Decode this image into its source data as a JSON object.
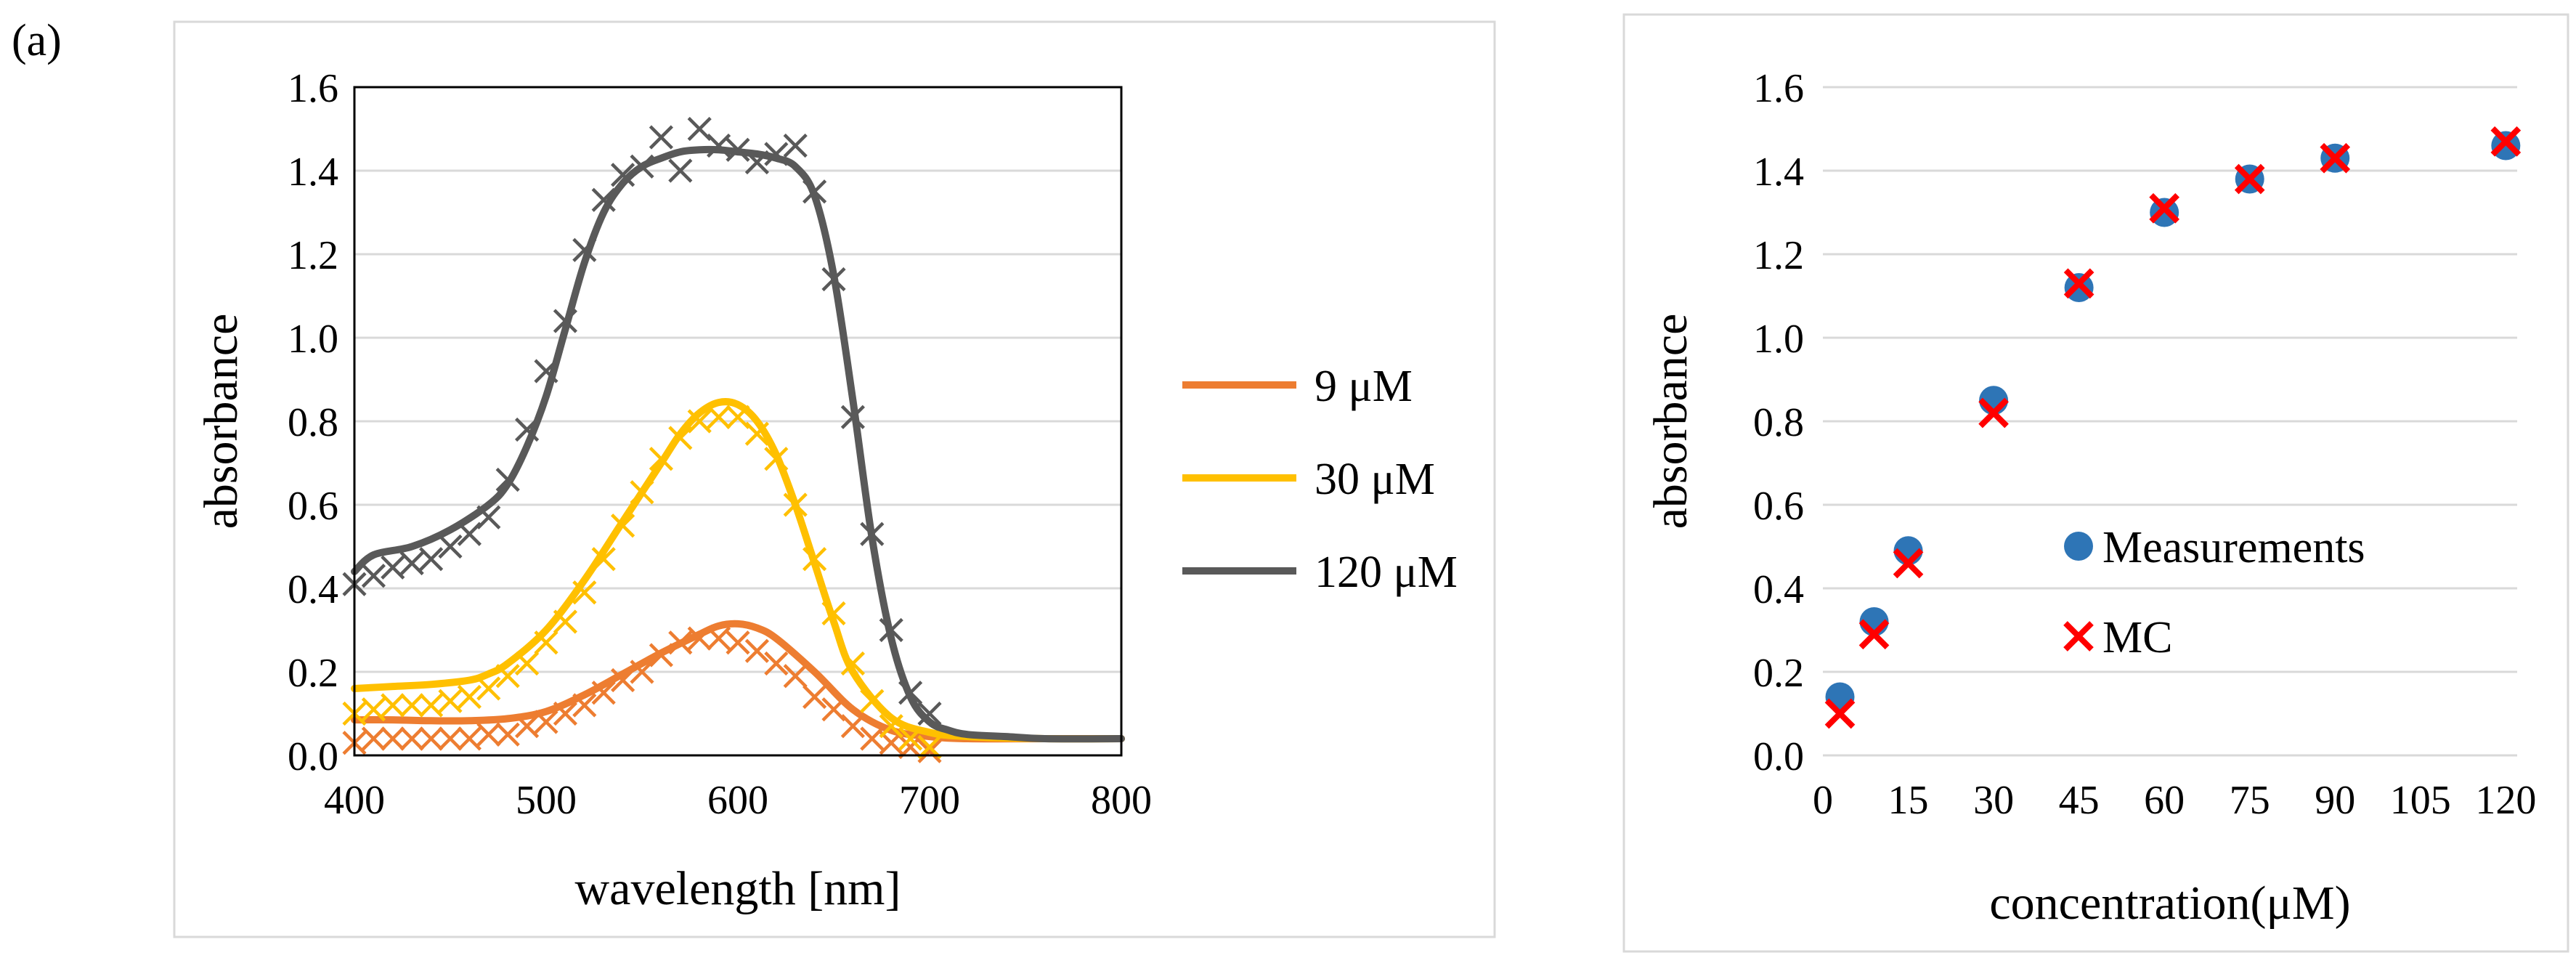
{
  "panel_label": "(a)",
  "colors": {
    "orange": "#ED7D31",
    "yellow": "#FFC000",
    "gray": "#595959",
    "blue": "#2E75B6",
    "red": "#FF0000",
    "grid": "#D9D9D9",
    "frame": "#D9D9D9"
  },
  "chart_data": [
    {
      "type": "line",
      "title": "",
      "xlabel": "wavelength [nm]",
      "ylabel": "absorbance",
      "xlim": [
        400,
        800
      ],
      "ylim": [
        0,
        1.6
      ],
      "x_ticks": [
        400,
        500,
        600,
        700,
        800
      ],
      "y_ticks": [
        "0.0",
        "0.2",
        "0.4",
        "0.6",
        "0.8",
        "1.0",
        "1.2",
        "1.4",
        "1.6"
      ],
      "grid": "horizontal",
      "legend_position": "right",
      "legend": [
        {
          "label": "9 μM",
          "color_key": "orange"
        },
        {
          "label": "30 μM",
          "color_key": "yellow"
        },
        {
          "label": "120 μM",
          "color_key": "gray"
        }
      ],
      "series": [
        {
          "name": "9 μM",
          "color_key": "orange",
          "line": {
            "x": [
              400,
              420,
              440,
              460,
              480,
              500,
              520,
              540,
              560,
              580,
              590,
              600,
              610,
              620,
              640,
              660,
              680,
              700,
              720,
              760,
              800
            ],
            "y": [
              0.085,
              0.085,
              0.083,
              0.083,
              0.088,
              0.105,
              0.145,
              0.195,
              0.245,
              0.29,
              0.31,
              0.315,
              0.305,
              0.28,
              0.2,
              0.11,
              0.06,
              0.045,
              0.04,
              0.04,
              0.04
            ]
          },
          "markers": {
            "x": [
              400,
              410,
              420,
              430,
              440,
              450,
              460,
              470,
              480,
              490,
              500,
              510,
              520,
              530,
              540,
              550,
              560,
              570,
              580,
              590,
              600,
              610,
              620,
              630,
              640,
              650,
              660,
              670,
              680,
              690,
              700
            ],
            "y": [
              0.03,
              0.04,
              0.04,
              0.04,
              0.04,
              0.04,
              0.04,
              0.05,
              0.05,
              0.07,
              0.08,
              0.1,
              0.12,
              0.15,
              0.18,
              0.2,
              0.24,
              0.27,
              0.28,
              0.28,
              0.27,
              0.25,
              0.22,
              0.19,
              0.14,
              0.11,
              0.07,
              0.04,
              0.03,
              0.02,
              0.01
            ]
          }
        },
        {
          "name": "30 μM",
          "color_key": "yellow",
          "line": {
            "x": [
              400,
              420,
              440,
              460,
              470,
              480,
              500,
              520,
              540,
              560,
              570,
              580,
              590,
              600,
              610,
              620,
              630,
              640,
              650,
              660,
              680,
              700,
              720,
              760,
              800
            ],
            "y": [
              0.16,
              0.165,
              0.17,
              0.18,
              0.195,
              0.22,
              0.3,
              0.42,
              0.56,
              0.7,
              0.77,
              0.82,
              0.845,
              0.84,
              0.8,
              0.72,
              0.6,
              0.46,
              0.32,
              0.2,
              0.09,
              0.055,
              0.045,
              0.04,
              0.04
            ]
          },
          "markers": {
            "x": [
              400,
              410,
              420,
              430,
              440,
              450,
              460,
              470,
              480,
              490,
              500,
              510,
              520,
              530,
              540,
              550,
              560,
              570,
              580,
              590,
              600,
              610,
              620,
              630,
              640,
              650,
              660,
              670,
              680,
              690,
              700
            ],
            "y": [
              0.1,
              0.11,
              0.12,
              0.12,
              0.12,
              0.13,
              0.14,
              0.16,
              0.19,
              0.22,
              0.27,
              0.32,
              0.39,
              0.47,
              0.55,
              0.63,
              0.71,
              0.76,
              0.8,
              0.81,
              0.81,
              0.77,
              0.71,
              0.6,
              0.47,
              0.34,
              0.22,
              0.13,
              0.07,
              0.04,
              0.02
            ]
          }
        },
        {
          "name": "120 μM",
          "color_key": "gray",
          "line": {
            "x": [
              400,
              410,
              430,
              450,
              470,
              480,
              490,
              500,
              510,
              520,
              530,
              540,
              550,
              560,
              570,
              580,
              590,
              600,
              610,
              620,
              630,
              640,
              650,
              660,
              670,
              680,
              690,
              700,
              710,
              720,
              740,
              760,
              800
            ],
            "y": [
              0.44,
              0.48,
              0.5,
              0.54,
              0.6,
              0.65,
              0.74,
              0.86,
              1.02,
              1.18,
              1.3,
              1.37,
              1.41,
              1.43,
              1.445,
              1.45,
              1.45,
              1.445,
              1.44,
              1.43,
              1.41,
              1.34,
              1.15,
              0.85,
              0.52,
              0.28,
              0.14,
              0.08,
              0.06,
              0.05,
              0.045,
              0.04,
              0.04
            ]
          },
          "markers": {
            "x": [
              400,
              410,
              420,
              430,
              440,
              450,
              460,
              470,
              480,
              490,
              500,
              510,
              520,
              530,
              540,
              550,
              560,
              570,
              580,
              590,
              600,
              610,
              620,
              630,
              640,
              650,
              660,
              670,
              680,
              690,
              700
            ],
            "y": [
              0.41,
              0.43,
              0.45,
              0.46,
              0.47,
              0.5,
              0.53,
              0.57,
              0.66,
              0.78,
              0.92,
              1.04,
              1.21,
              1.33,
              1.39,
              1.41,
              1.48,
              1.4,
              1.5,
              1.46,
              1.45,
              1.42,
              1.44,
              1.46,
              1.35,
              1.14,
              0.81,
              0.53,
              0.3,
              0.15,
              0.1
            ]
          }
        }
      ]
    },
    {
      "type": "scatter",
      "title": "",
      "xlabel": "concentration(μM)",
      "ylabel": "absorbance",
      "xlim": [
        0,
        122
      ],
      "ylim": [
        0,
        1.6
      ],
      "x_ticks": [
        "0",
        "15",
        "30",
        "45",
        "60",
        "75",
        "90",
        "105",
        "120"
      ],
      "x_tick_values": [
        0,
        15,
        30,
        45,
        60,
        75,
        90,
        105,
        120
      ],
      "y_ticks": [
        "0.0",
        "0.2",
        "0.4",
        "0.6",
        "0.8",
        "1.0",
        "1.2",
        "1.4",
        "1.6"
      ],
      "grid": "horizontal",
      "legend_position": "inside-center-right",
      "legend": [
        {
          "label": "Measurements",
          "marker": "circle",
          "color_key": "blue"
        },
        {
          "label": "MC",
          "marker": "x",
          "color_key": "red"
        }
      ],
      "series": [
        {
          "name": "Measurements",
          "marker": "circle",
          "color_key": "blue",
          "x": [
            3,
            9,
            15,
            30,
            45,
            60,
            75,
            90,
            120
          ],
          "y": [
            0.14,
            0.32,
            0.49,
            0.85,
            1.12,
            1.3,
            1.38,
            1.43,
            1.46
          ]
        },
        {
          "name": "MC",
          "marker": "x",
          "color_key": "red",
          "x": [
            3,
            9,
            15,
            30,
            45,
            60,
            75,
            90,
            120
          ],
          "y": [
            0.1,
            0.29,
            0.46,
            0.82,
            1.13,
            1.31,
            1.38,
            1.43,
            1.47
          ]
        }
      ]
    }
  ]
}
